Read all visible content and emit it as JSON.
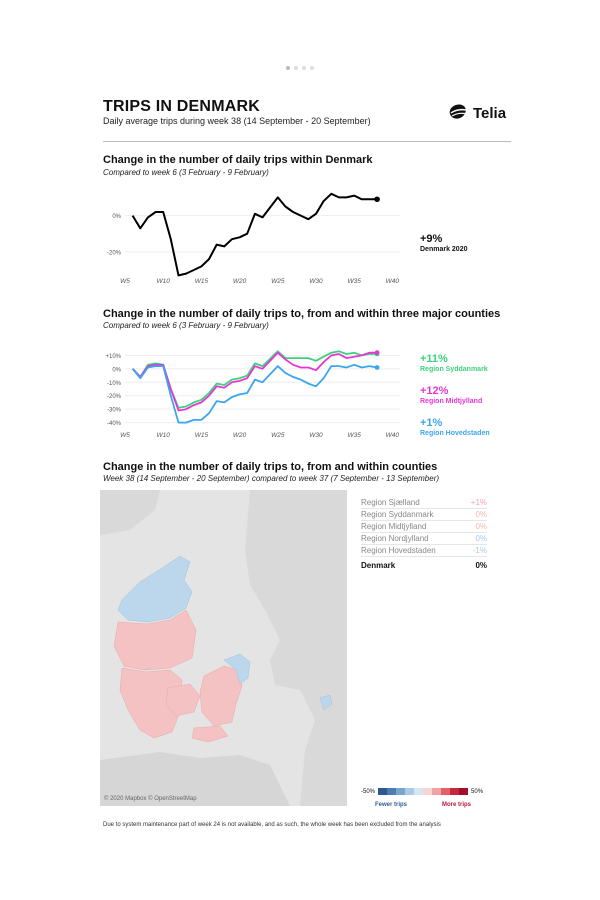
{
  "header": {
    "title": "TRIPS IN DENMARK",
    "subtitle": "Daily average trips during week 38 (14 September - 20 September)",
    "logo_text": "Telia"
  },
  "colors": {
    "national": "#000000",
    "syddanmark": "#3dd27c",
    "midtjylland": "#e637d6",
    "hovedstaden": "#3aa6ee",
    "map_increase": "#f4c2c2",
    "map_decrease": "#bcd7ec",
    "map_neutral": "#e4e4e4"
  },
  "section1": {
    "title": "Change in the number of daily trips within Denmark",
    "subtitle": "Compared to week 6 (3 February - 9 February)",
    "callout_value": "+9%",
    "callout_label": "Denmark 2020"
  },
  "section2": {
    "title": "Change in the number of daily trips to, from and within three major counties",
    "subtitle": "Compared to week 6 (3 February - 9 February)",
    "callouts": [
      {
        "value": "+11%",
        "label": "Region Syddanmark",
        "color": "#3dd27c"
      },
      {
        "value": "+12%",
        "label": "Region Midtjylland",
        "color": "#e637d6"
      },
      {
        "value": "+1%",
        "label": "Region Hovedstaden",
        "color": "#3aa6ee"
      }
    ]
  },
  "section3": {
    "title": "Change in the number of daily trips to, from and within counties",
    "subtitle": "Week 38 (14 September - 20 September) compared to week 37 (7 September - 13 September)",
    "map_credit": "© 2020 Mapbox © OpenStreetMap",
    "regions": [
      {
        "name": "Region Sjælland",
        "value": "+1%",
        "color": "#f4a6a6"
      },
      {
        "name": "Region Syddanmark",
        "value": "0%",
        "color": "#f4b8b8"
      },
      {
        "name": "Region Midtjylland",
        "value": "0%",
        "color": "#f4b8b8"
      },
      {
        "name": "Region Nordjylland",
        "value": "0%",
        "color": "#a9cbe8"
      },
      {
        "name": "Region Hovedstaden",
        "value": "-1%",
        "color": "#a9cbe8"
      }
    ],
    "total": {
      "name": "Denmark",
      "value": "0%"
    },
    "scale": {
      "min": "-50%",
      "max": "50%",
      "fewer": "Fewer trips",
      "more": "More trips",
      "colors": [
        "#2c5a8c",
        "#4b7db0",
        "#7aa6cc",
        "#a9cbe8",
        "#d6e6f2",
        "#f6d4d4",
        "#f0a3a3",
        "#e2606a",
        "#c8283f",
        "#a30d2a"
      ]
    },
    "footnote": "Due to system maintenance part of week 24 is not available, and as such, the whole week has been excluded from the analysis"
  },
  "chart_data": [
    {
      "type": "line",
      "xlim": [
        5,
        41
      ],
      "ylim": [
        -30,
        13
      ],
      "xticks": [
        5,
        10,
        15,
        20,
        25,
        30,
        35,
        40
      ],
      "xticklabels": [
        "W5",
        "W10",
        "W15",
        "W20",
        "W25",
        "W30",
        "W35",
        "W40"
      ],
      "yticks": [
        0,
        -20
      ],
      "yticklabels": [
        "0%",
        "-20%"
      ],
      "series": [
        {
          "x": [
            6,
            7,
            8,
            9,
            10,
            11,
            12,
            13,
            14,
            15,
            16,
            17,
            18,
            19,
            20,
            21,
            22,
            23,
            25,
            26,
            27,
            28,
            29,
            30,
            31,
            32,
            33,
            34,
            35,
            36,
            37,
            38
          ],
          "values": [
            0,
            -7,
            -1,
            2,
            2,
            -13,
            -33,
            -32,
            -30,
            -28,
            -24,
            -16,
            -17,
            -13,
            -12,
            -10,
            1,
            -1,
            10,
            5,
            2,
            0,
            -2,
            1,
            8,
            12,
            10,
            10,
            11,
            9,
            9,
            9
          ]
        }
      ]
    },
    {
      "type": "line",
      "xlim": [
        5,
        41
      ],
      "ylim": [
        -44,
        14
      ],
      "xticks": [
        5,
        10,
        15,
        20,
        25,
        30,
        35,
        40
      ],
      "xticklabels": [
        "W5",
        "W10",
        "W15",
        "W20",
        "W25",
        "W30",
        "W35",
        "W40"
      ],
      "yticks": [
        10,
        0,
        -10,
        -20,
        -30,
        -40
      ],
      "yticklabels": [
        "+10%",
        "0%",
        "-10%",
        "-20%",
        "-30%",
        "-40%"
      ],
      "x": [
        6,
        7,
        8,
        9,
        10,
        11,
        12,
        13,
        14,
        15,
        16,
        17,
        18,
        19,
        20,
        21,
        22,
        23,
        25,
        26,
        27,
        28,
        29,
        30,
        31,
        32,
        33,
        34,
        35,
        36,
        37,
        38
      ],
      "series": [
        {
          "name": "Region Syddanmark",
          "values": [
            0,
            -6,
            3,
            4,
            3,
            -15,
            -29,
            -28,
            -25,
            -23,
            -18,
            -11,
            -12,
            -8,
            -7,
            -5,
            4,
            2,
            13,
            8,
            8,
            8,
            8,
            6,
            9,
            12,
            13,
            11,
            12,
            10,
            11,
            11
          ]
        },
        {
          "name": "Region Midtjylland",
          "values": [
            0,
            -6,
            2,
            3,
            3,
            -15,
            -31,
            -30,
            -27,
            -25,
            -20,
            -13,
            -14,
            -10,
            -9,
            -7,
            2,
            0,
            12,
            7,
            3,
            1,
            1,
            -1,
            5,
            10,
            11,
            8,
            9,
            10,
            12,
            12
          ]
        },
        {
          "name": "Region Hovedstaden",
          "values": [
            0,
            -7,
            1,
            2,
            2,
            -20,
            -40,
            -40,
            -38,
            -38,
            -33,
            -24,
            -25,
            -21,
            -19,
            -18,
            -8,
            -10,
            2,
            -3,
            -6,
            -8,
            -11,
            -13,
            -7,
            2,
            2,
            1,
            3,
            1,
            2,
            1
          ]
        }
      ]
    }
  ]
}
